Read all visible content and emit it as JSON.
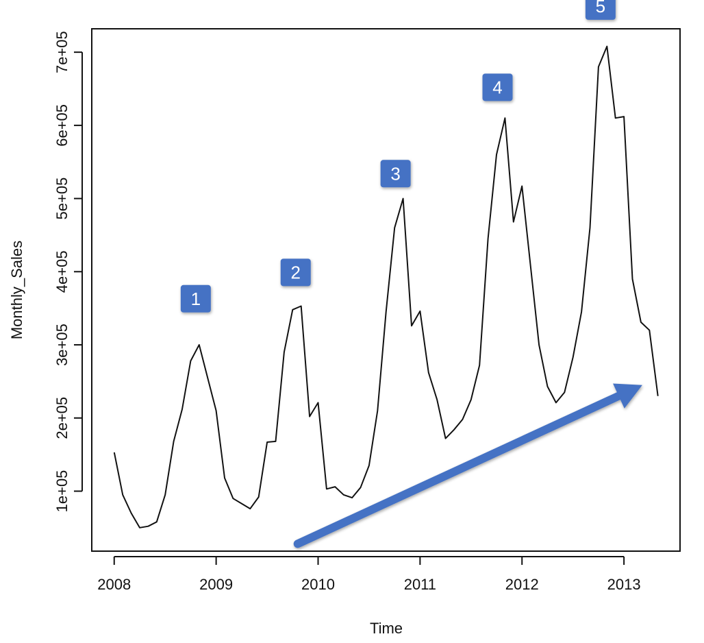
{
  "chart_data": {
    "type": "line",
    "title": "",
    "xlabel": "Time",
    "ylabel": "Monthly_Sales",
    "xlim": [
      2007.78,
      2013.55
    ],
    "ylim": [
      18000,
      732000
    ],
    "x_ticks": [
      {
        "value": 2008,
        "label": "2008"
      },
      {
        "value": 2009,
        "label": "2009"
      },
      {
        "value": 2010,
        "label": "2010"
      },
      {
        "value": 2011,
        "label": "2011"
      },
      {
        "value": 2012,
        "label": "2012"
      },
      {
        "value": 2013,
        "label": "2013"
      }
    ],
    "y_ticks": [
      {
        "value": 100000,
        "label": "1e+05"
      },
      {
        "value": 200000,
        "label": "2e+05"
      },
      {
        "value": 300000,
        "label": "3e+05"
      },
      {
        "value": 400000,
        "label": "4e+05"
      },
      {
        "value": 500000,
        "label": "5e+05"
      },
      {
        "value": 600000,
        "label": "6e+05"
      },
      {
        "value": 700000,
        "label": "7e+05"
      }
    ],
    "series": [
      {
        "start": 2008,
        "frequency": 12,
        "values": [
          153000,
          95000,
          70000,
          50000,
          52000,
          58000,
          95000,
          168000,
          212000,
          278000,
          300000,
          255000,
          210000,
          118000,
          90000,
          83000,
          76000,
          92000,
          167000,
          168000,
          290000,
          348000,
          353000,
          202000,
          221000,
          103000,
          106000,
          95000,
          91000,
          105000,
          135000,
          210000,
          345000,
          460000,
          500000,
          326000,
          346000,
          262000,
          225000,
          172000,
          184000,
          198000,
          225000,
          272000,
          445000,
          560000,
          610000,
          468000,
          517000,
          408000,
          300000,
          243000,
          221000,
          235000,
          283000,
          345000,
          460000,
          680000,
          708000,
          610000,
          612000,
          390000,
          331000,
          320000,
          230000
        ],
        "color": "#111111"
      }
    ],
    "annotations": [
      {
        "label": "1",
        "x": 2008.8,
        "y": 363000
      },
      {
        "label": "2",
        "x": 2009.78,
        "y": 399000
      },
      {
        "label": "3",
        "x": 2010.76,
        "y": 534000
      },
      {
        "label": "4",
        "x": 2011.76,
        "y": 652000
      },
      {
        "label": "5",
        "x": 2012.77,
        "y": 763000
      }
    ],
    "trend_arrow": {
      "x0": 2009.8,
      "y0": 28000,
      "x1": 2013.18,
      "y1": 245000,
      "color": "#4472C4"
    },
    "annotation_color": "#4472C4",
    "grid": false
  }
}
